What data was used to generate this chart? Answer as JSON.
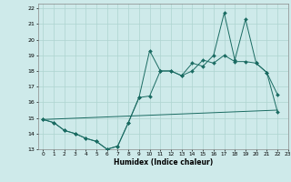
{
  "xlabel": "Humidex (Indice chaleur)",
  "bg_color": "#ceeaea",
  "line_color": "#1a6b62",
  "grid_color": "#aed4d0",
  "xlim": [
    -0.5,
    23
  ],
  "ylim": [
    13,
    22.3
  ],
  "xtick_labels": [
    "0",
    "1",
    "2",
    "3",
    "4",
    "5",
    "6",
    "7",
    "8",
    "9",
    "10",
    "11",
    "12",
    "13",
    "14",
    "15",
    "16",
    "17",
    "18",
    "19",
    "20",
    "21",
    "22",
    "23"
  ],
  "xtick_pos": [
    0,
    1,
    2,
    3,
    4,
    5,
    6,
    7,
    8,
    9,
    10,
    11,
    12,
    13,
    14,
    15,
    16,
    17,
    18,
    19,
    20,
    21,
    22,
    23
  ],
  "ytick_pos": [
    13,
    14,
    15,
    16,
    17,
    18,
    19,
    20,
    21,
    22
  ],
  "line1_x": [
    0,
    1,
    2,
    3,
    4,
    5,
    6,
    7,
    8,
    9,
    10,
    11,
    12,
    13,
    14,
    15,
    16,
    17,
    18,
    19,
    20,
    21,
    22
  ],
  "line1_y": [
    14.9,
    14.7,
    14.2,
    14.0,
    13.7,
    13.5,
    13.0,
    13.2,
    14.7,
    16.3,
    16.4,
    18.0,
    18.0,
    17.7,
    18.0,
    18.7,
    18.5,
    19.0,
    18.6,
    18.6,
    18.5,
    17.9,
    15.4
  ],
  "line2_x": [
    0,
    1,
    2,
    3,
    4,
    5,
    6,
    7,
    8,
    9,
    10,
    11,
    12,
    13,
    14,
    15,
    16,
    17,
    18,
    19,
    20,
    21,
    22
  ],
  "line2_y": [
    14.9,
    14.7,
    14.2,
    14.0,
    13.7,
    13.5,
    13.0,
    13.2,
    14.7,
    16.3,
    19.3,
    18.0,
    18.0,
    17.7,
    18.5,
    18.3,
    19.0,
    21.7,
    18.7,
    21.3,
    18.5,
    17.9,
    16.5
  ],
  "line3_x": [
    0,
    22
  ],
  "line3_y": [
    14.9,
    15.5
  ]
}
